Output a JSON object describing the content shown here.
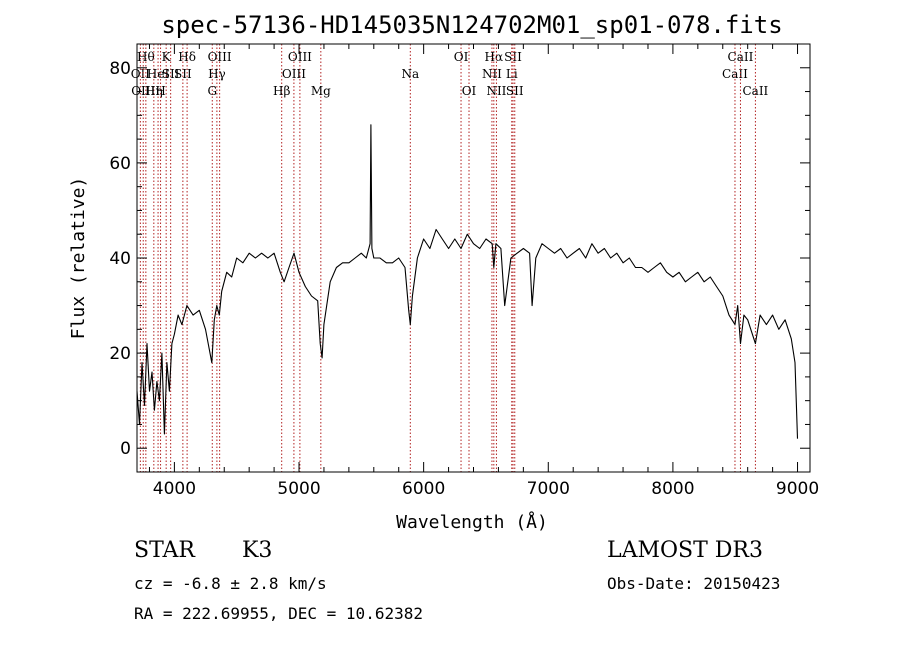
{
  "chart_data": {
    "type": "line",
    "title": "spec-57136-HD145035N124702M01_sp01-078.fits",
    "xlabel": "Wavelength (Å)",
    "ylabel": "Flux (relative)",
    "xlim": [
      3700,
      9100
    ],
    "ylim": [
      -5,
      85
    ],
    "x_ticks": [
      4000,
      5000,
      6000,
      7000,
      8000,
      9000
    ],
    "y_ticks": [
      0,
      20,
      40,
      60,
      80
    ],
    "line_color": "#000000",
    "marker_color": "#b22222",
    "series": [
      {
        "name": "flux",
        "x": [
          3700,
          3720,
          3740,
          3760,
          3780,
          3800,
          3820,
          3840,
          3860,
          3880,
          3900,
          3920,
          3940,
          3960,
          3980,
          4000,
          4030,
          4060,
          4100,
          4150,
          4200,
          4250,
          4300,
          4320,
          4340,
          4360,
          4380,
          4420,
          4460,
          4500,
          4550,
          4600,
          4650,
          4700,
          4750,
          4800,
          4850,
          4880,
          4920,
          4960,
          5000,
          5050,
          5100,
          5150,
          5170,
          5185,
          5200,
          5250,
          5300,
          5350,
          5400,
          5450,
          5500,
          5540,
          5570,
          5577,
          5585,
          5600,
          5650,
          5700,
          5750,
          5800,
          5850,
          5880,
          5893,
          5910,
          5950,
          6000,
          6050,
          6100,
          6150,
          6200,
          6250,
          6300,
          6350,
          6400,
          6450,
          6500,
          6550,
          6563,
          6580,
          6620,
          6650,
          6700,
          6750,
          6800,
          6850,
          6870,
          6900,
          6950,
          7000,
          7050,
          7100,
          7150,
          7200,
          7250,
          7300,
          7350,
          7400,
          7450,
          7500,
          7550,
          7600,
          7650,
          7700,
          7750,
          7800,
          7850,
          7900,
          7950,
          8000,
          8050,
          8100,
          8150,
          8200,
          8250,
          8300,
          8350,
          8400,
          8450,
          8498,
          8520,
          8542,
          8570,
          8600,
          8662,
          8700,
          8750,
          8800,
          8850,
          8900,
          8950,
          8980,
          9000
        ],
        "y": [
          12,
          5,
          18,
          9,
          22,
          12,
          16,
          8,
          14,
          10,
          20,
          3,
          18,
          12,
          22,
          24,
          28,
          26,
          30,
          28,
          29,
          25,
          18,
          27,
          30,
          28,
          33,
          37,
          36,
          40,
          39,
          41,
          40,
          41,
          40,
          41,
          37,
          35,
          38,
          41,
          37,
          34,
          32,
          31,
          22,
          19,
          26,
          35,
          38,
          39,
          39,
          40,
          41,
          40,
          43,
          68,
          42,
          40,
          40,
          39,
          39,
          40,
          38,
          29,
          26,
          32,
          40,
          44,
          42,
          46,
          44,
          42,
          44,
          42,
          45,
          43,
          42,
          44,
          43,
          38,
          43,
          42,
          30,
          40,
          41,
          42,
          41,
          30,
          40,
          43,
          42,
          41,
          42,
          40,
          41,
          42,
          40,
          43,
          41,
          42,
          40,
          41,
          39,
          40,
          38,
          38,
          37,
          38,
          39,
          37,
          36,
          37,
          35,
          36,
          37,
          35,
          36,
          34,
          32,
          28,
          26,
          30,
          22,
          28,
          27,
          22,
          28,
          26,
          28,
          25,
          27,
          23,
          18,
          2
        ]
      }
    ],
    "lines": [
      {
        "w": 3727,
        "label": "OII",
        "row": 1
      },
      {
        "w": 3750,
        "label": "OIII",
        "row": 2
      },
      {
        "w": 3771,
        "label": "Hθ",
        "row": 0
      },
      {
        "w": 3835,
        "label": "Hη",
        "row": 2
      },
      {
        "w": 3869,
        "label": "HeI",
        "row": 1
      },
      {
        "w": 3889,
        "label": "H",
        "row": 2
      },
      {
        "w": 3934,
        "label": "K",
        "row": 0
      },
      {
        "w": 3970,
        "label": "SII",
        "row": 1
      },
      {
        "w": 4068,
        "label": "SII",
        "row": 1
      },
      {
        "w": 4102,
        "label": "Hδ",
        "row": 0
      },
      {
        "w": 4304,
        "label": "G",
        "row": 2
      },
      {
        "w": 4341,
        "label": "Hγ",
        "row": 1
      },
      {
        "w": 4363,
        "label": "OIII",
        "row": 0
      },
      {
        "w": 4861,
        "label": "Hβ",
        "row": 2
      },
      {
        "w": 4959,
        "label": "OIII",
        "row": 1
      },
      {
        "w": 5007,
        "label": "OIII",
        "row": 0
      },
      {
        "w": 5175,
        "label": "Mg",
        "row": 2
      },
      {
        "w": 5893,
        "label": "Na",
        "row": 1
      },
      {
        "w": 6300,
        "label": "OI",
        "row": 0
      },
      {
        "w": 6364,
        "label": "OI",
        "row": 2
      },
      {
        "w": 6548,
        "label": "NII",
        "row": 1
      },
      {
        "w": 6563,
        "label": "Hα",
        "row": 0
      },
      {
        "w": 6584,
        "label": "NII",
        "row": 2
      },
      {
        "w": 6707,
        "label": "Li",
        "row": 1
      },
      {
        "w": 6717,
        "label": "SII",
        "row": 0
      },
      {
        "w": 6731,
        "label": "SII",
        "row": 2
      },
      {
        "w": 8498,
        "label": "CaII",
        "row": 1
      },
      {
        "w": 8542,
        "label": "CaII",
        "row": 0
      },
      {
        "w": 8662,
        "label": "CaII",
        "row": 2
      }
    ]
  },
  "info": {
    "class_label": "STAR",
    "subclass": "K3",
    "survey": "LAMOST DR3",
    "redshift": "cz = -6.8 ± 2.8 km/s",
    "obs_date": "Obs-Date: 20150423",
    "coords": "RA = 222.69955, DEC =  10.62382"
  }
}
